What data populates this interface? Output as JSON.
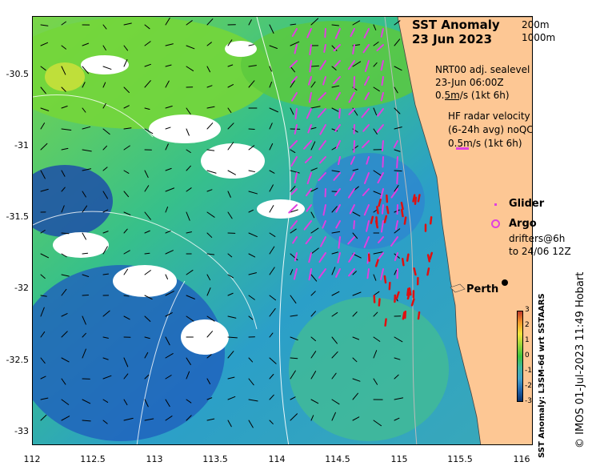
{
  "title": {
    "line1": "SST Anomaly",
    "line2": "23 Jun 2023"
  },
  "contours": {
    "c200": "200m",
    "c1000": "1000m"
  },
  "sealevel": {
    "source": "NRT00 adj. sealevel",
    "time": "23-Jun 06:00Z",
    "scale": "0.5m/s (1kt 6h)"
  },
  "hf_radar": {
    "line1": "HF radar velocity",
    "line2": "(6-24h avg) noQC",
    "scale": "0.5m/s (1kt 6h)"
  },
  "legend": {
    "glider": "Glider",
    "argo": "Argo",
    "drifters1": "drifters@6h",
    "drifters2": "to 24/06 12Z"
  },
  "place": {
    "perth": "Perth"
  },
  "axes": {
    "y_ticks": [
      "-30.5",
      "-31",
      "-31.5",
      "-32",
      "-32.5",
      "-33"
    ],
    "x_ticks": [
      "112",
      "112.5",
      "113",
      "113.5",
      "114",
      "114.5",
      "115",
      "115.5",
      "116"
    ]
  },
  "colorbar": {
    "title": "SST Anomaly: L3SM-6d wrt SSTAARS",
    "ticks": [
      "3",
      "2",
      "1",
      "0",
      "-1",
      "-2",
      "-3"
    ],
    "range": [
      -3,
      3
    ],
    "colors": [
      "#08306b",
      "#2166ac",
      "#43a2ca",
      "#41b6a0",
      "#3cc43c",
      "#9ad43a",
      "#f3e53a",
      "#f59b2a",
      "#c0392b"
    ]
  },
  "credit": "© IMOS 01-Jul-2023 11:49 Hobart",
  "colors": {
    "land": "#fdc794",
    "hf_vectors": "#e040e0",
    "drifter": "#e01010",
    "sea_level": "#000000"
  }
}
